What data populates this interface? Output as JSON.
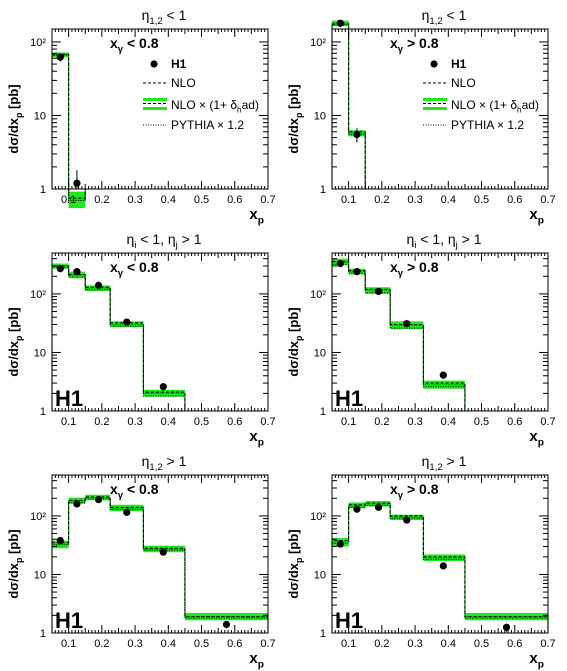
{
  "chart_data": [
    {
      "type": "line",
      "title": "η_{1,2} < 1",
      "cut": "x_γ < 0.8",
      "xlabel": "x_p",
      "ylabel": "dσ/dx_p [pb]",
      "xlim": [
        0.05,
        0.7
      ],
      "ylim": [
        1,
        150
      ],
      "log_y": true,
      "xticks": [
        "0.1",
        "0.2",
        "0.3",
        "0.4",
        "0.5",
        "0.6",
        "0.7"
      ],
      "yticks": [
        "1",
        "10",
        "10²"
      ],
      "legend": [
        "H1",
        "NLO",
        "NLO × (1+ δ_had)",
        "PYTHIA × 1.2"
      ],
      "bins": [
        0.05,
        0.1,
        0.15
      ],
      "h1": {
        "x": [
          0.075,
          0.125
        ],
        "y": [
          62,
          1.2
        ],
        "yerr_low": [
          8,
          0.4
        ],
        "yerr_high": [
          8,
          0.6
        ]
      },
      "nlo": [
        68,
        0.75
      ],
      "nlo_had_central": [
        67,
        0.7
      ],
      "nlo_had_band_low": [
        62,
        0.55
      ],
      "nlo_had_band_high": [
        72,
        0.92
      ],
      "pythia": [
        66,
        0.7
      ]
    },
    {
      "type": "line",
      "title": "η_{1,2} < 1",
      "cut": "x_γ > 0.8",
      "xlabel": "x_p",
      "ylabel": "dσ/dx_p [pb]",
      "xlim": [
        0.05,
        0.7
      ],
      "ylim": [
        1,
        150
      ],
      "log_y": true,
      "xticks": [
        "0.1",
        "0.2",
        "0.3",
        "0.4",
        "0.5",
        "0.6",
        "0.7"
      ],
      "yticks": [
        "1",
        "10",
        "10²"
      ],
      "legend": [
        "H1",
        "NLO",
        "NLO × (1+ δ_had)",
        "PYTHIA × 1.2"
      ],
      "bins": [
        0.05,
        0.1,
        0.15
      ],
      "h1": {
        "x": [
          0.075,
          0.125
        ],
        "y": [
          180,
          5.5
        ],
        "yerr_low": [
          20,
          1.2
        ],
        "yerr_high": [
          20,
          1.2
        ]
      },
      "nlo": [
        175,
        6
      ],
      "nlo_had_central": [
        180,
        5.7
      ],
      "nlo_had_band_low": [
        165,
        5.2
      ],
      "nlo_had_band_high": [
        195,
        6.3
      ],
      "pythia": [
        170,
        5.5
      ]
    },
    {
      "type": "line",
      "title": "η_i < 1, η_j > 1",
      "cut": "x_γ < 0.8",
      "xlabel": "x_p",
      "ylabel": "dσ/dx_p [pb]",
      "xlim": [
        0.05,
        0.7
      ],
      "ylim": [
        1,
        500
      ],
      "log_y": true,
      "xticks": [
        "0.1",
        "0.2",
        "0.3",
        "0.4",
        "0.5",
        "0.6",
        "0.7"
      ],
      "yticks": [
        "1",
        "10",
        "10²"
      ],
      "corner_label": "H1",
      "bins": [
        0.05,
        0.1,
        0.15,
        0.225,
        0.325,
        0.45
      ],
      "h1": {
        "x": [
          0.075,
          0.125,
          0.19,
          0.275,
          0.385
        ],
        "y": [
          270,
          240,
          140,
          33,
          2.6
        ],
        "yerr_low": [
          20,
          20,
          12,
          3,
          0.4
        ],
        "yerr_high": [
          20,
          20,
          12,
          3,
          0.4
        ]
      },
      "nlo": [
        300,
        215,
        130,
        32,
        2.1
      ],
      "nlo_had_central": [
        300,
        210,
        125,
        30,
        2.0
      ],
      "nlo_had_band_low": [
        270,
        185,
        112,
        27,
        1.75
      ],
      "nlo_had_band_high": [
        330,
        240,
        140,
        34,
        2.3
      ],
      "pythia": [
        280,
        195,
        118,
        28,
        1.8
      ]
    },
    {
      "type": "line",
      "title": "η_i < 1, η_j > 1",
      "cut": "x_γ > 0.8",
      "xlabel": "x_p",
      "ylabel": "dσ/dx_p [pb]",
      "xlim": [
        0.05,
        0.7
      ],
      "ylim": [
        1,
        500
      ],
      "log_y": true,
      "xticks": [
        "0.1",
        "0.2",
        "0.3",
        "0.4",
        "0.5",
        "0.6",
        "0.7"
      ],
      "yticks": [
        "1",
        "10",
        "10²"
      ],
      "corner_label": "H1",
      "bins": [
        0.05,
        0.1,
        0.15,
        0.225,
        0.325,
        0.45
      ],
      "h1": {
        "x": [
          0.075,
          0.125,
          0.19,
          0.275,
          0.385
        ],
        "y": [
          330,
          240,
          110,
          31,
          4.1
        ],
        "yerr_low": [
          25,
          20,
          10,
          3,
          0.6
        ],
        "yerr_high": [
          25,
          20,
          10,
          3,
          0.6
        ]
      },
      "nlo": [
        360,
        250,
        120,
        30,
        3.0
      ],
      "nlo_had_central": [
        350,
        240,
        115,
        29,
        2.8
      ],
      "nlo_had_band_low": [
        310,
        215,
        100,
        25,
        2.4
      ],
      "nlo_had_band_high": [
        400,
        270,
        130,
        34,
        3.3
      ],
      "pythia": [
        320,
        225,
        105,
        26,
        2.6
      ]
    },
    {
      "type": "line",
      "title": "η_{1,2} > 1",
      "cut": "x_γ < 0.8",
      "xlabel": "x_p",
      "ylabel": "dσ/dx_p [pb]",
      "xlim": [
        0.05,
        0.7
      ],
      "ylim": [
        1,
        500
      ],
      "log_y": true,
      "xticks": [
        "0.1",
        "0.2",
        "0.3",
        "0.4",
        "0.5",
        "0.6",
        "0.7"
      ],
      "yticks": [
        "1",
        "10",
        "10²"
      ],
      "corner_label": "H1",
      "bins": [
        0.05,
        0.1,
        0.15,
        0.225,
        0.325,
        0.45,
        0.7
      ],
      "h1": {
        "x": [
          0.075,
          0.125,
          0.19,
          0.275,
          0.385,
          0.575
        ],
        "y": [
          38,
          160,
          190,
          115,
          24,
          1.4
        ],
        "yerr_low": [
          4,
          14,
          16,
          10,
          2,
          0.2
        ],
        "yerr_high": [
          4,
          14,
          16,
          10,
          2,
          0.2
        ]
      },
      "nlo": [
        35,
        185,
        210,
        140,
        28,
        1.9
      ],
      "nlo_had_central": [
        33,
        180,
        205,
        135,
        27,
        1.9
      ],
      "nlo_had_band_low": [
        28,
        160,
        185,
        120,
        24,
        1.65
      ],
      "nlo_had_band_high": [
        38,
        205,
        230,
        155,
        31,
        2.2
      ],
      "pythia": [
        32,
        170,
        195,
        128,
        26,
        1.8
      ]
    },
    {
      "type": "line",
      "title": "η_{1,2} > 1",
      "cut": "x_γ > 0.8",
      "xlabel": "x_p",
      "ylabel": "dσ/dx_p [pb]",
      "xlim": [
        0.05,
        0.7
      ],
      "ylim": [
        1,
        500
      ],
      "log_y": true,
      "xticks": [
        "0.1",
        "0.2",
        "0.3",
        "0.4",
        "0.5",
        "0.6",
        "0.7"
      ],
      "yticks": [
        "1",
        "10",
        "10²"
      ],
      "corner_label": "H1",
      "bins": [
        0.05,
        0.1,
        0.15,
        0.225,
        0.325,
        0.45,
        0.7
      ],
      "h1": {
        "x": [
          0.075,
          0.125,
          0.19,
          0.275,
          0.385,
          0.575
        ],
        "y": [
          33,
          130,
          140,
          85,
          14,
          1.25
        ],
        "yerr_low": [
          3,
          12,
          12,
          8,
          1.5,
          0.2
        ],
        "yerr_high": [
          3,
          12,
          12,
          8,
          1.5,
          0.2
        ]
      },
      "nlo": [
        38,
        155,
        165,
        100,
        20,
        1.9
      ],
      "nlo_had_central": [
        36,
        150,
        160,
        95,
        19,
        1.9
      ],
      "nlo_had_band_low": [
        30,
        135,
        145,
        85,
        17,
        1.65
      ],
      "nlo_had_band_high": [
        42,
        170,
        180,
        105,
        22,
        2.2
      ],
      "pythia": [
        34,
        140,
        150,
        90,
        18,
        1.8
      ]
    }
  ]
}
